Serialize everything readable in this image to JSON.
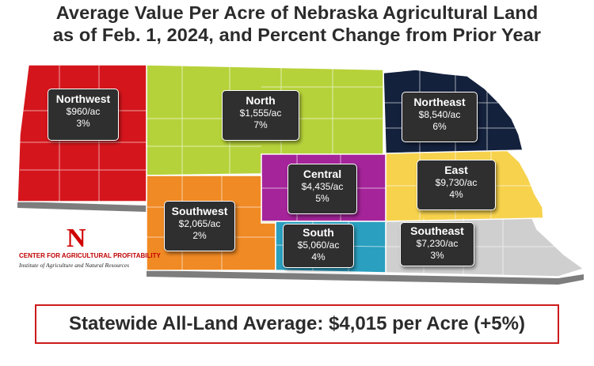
{
  "title": {
    "line1": "Average Value Per Acre of Nebraska Agricultural Land",
    "line2": "as of Feb. 1, 2024, and Percent Change from Prior Year"
  },
  "regions": {
    "northwest": {
      "name": "Northwest",
      "value": "$960/ac",
      "change": "3%",
      "color": "#d4161c"
    },
    "north": {
      "name": "North",
      "value": "$1,555/ac",
      "change": "7%",
      "color": "#b6d23a"
    },
    "northeast": {
      "name": "Northeast",
      "value": "$8,540/ac",
      "change": "6%",
      "color": "#14213d"
    },
    "central": {
      "name": "Central",
      "value": "$4,435/ac",
      "change": "5%",
      "color": "#a5249a"
    },
    "east": {
      "name": "East",
      "value": "$9,730/ac",
      "change": "4%",
      "color": "#f7d24d"
    },
    "southwest": {
      "name": "Southwest",
      "value": "$2,065/ac",
      "change": "2%",
      "color": "#f08a24"
    },
    "south": {
      "name": "South",
      "value": "$5,060/ac",
      "change": "4%",
      "color": "#2a9fbf"
    },
    "southeast": {
      "name": "Southeast",
      "value": "$7,230/ac",
      "change": "3%",
      "color": "#cfcfcf"
    }
  },
  "logo": {
    "letter": "N",
    "org": "CENTER FOR AGRICULTURAL PROFITABILITY",
    "institute": "Institute of Agriculture and Natural Resources"
  },
  "statewide": "Statewide All-Land Average: $4,015 per Acre (+5%)"
}
